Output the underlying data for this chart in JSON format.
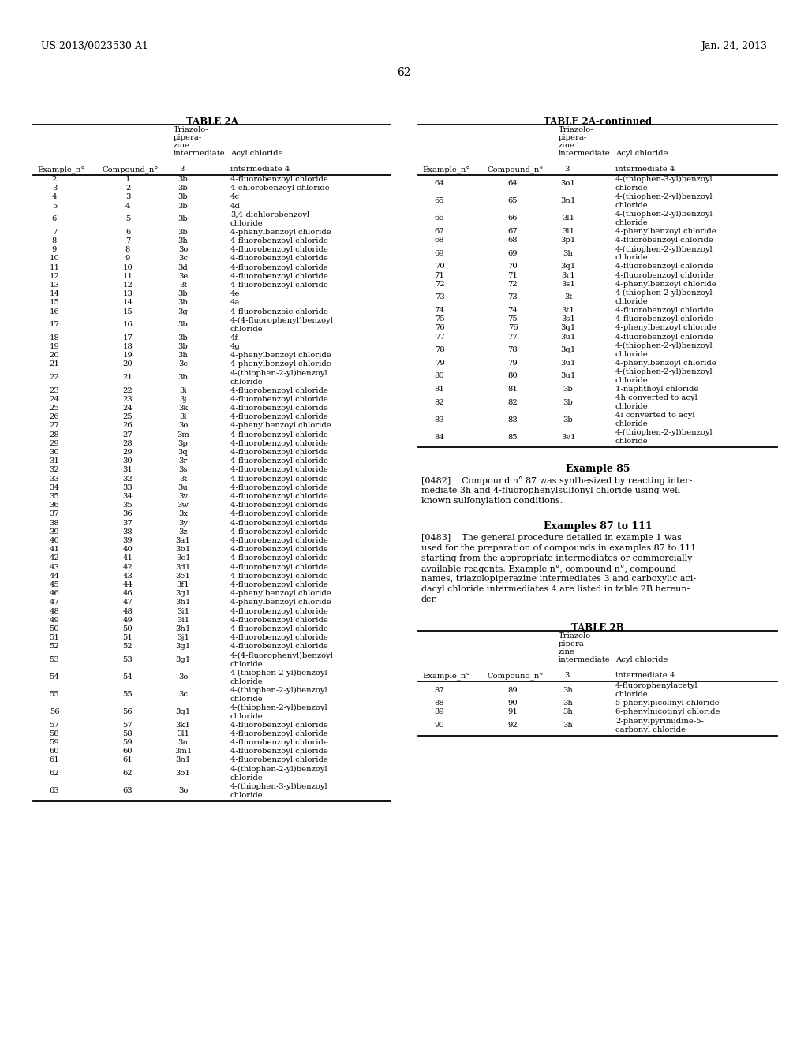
{
  "header_left": "US 2013/0023530 A1",
  "header_right": "Jan. 24, 2013",
  "page_number": "62",
  "table2a_title": "TABLE 2A",
  "table2a_continued_title": "TABLE 2A-continued",
  "table2b_title": "TABLE 2B",
  "table2a_rows": [
    [
      "2",
      "1",
      "3b",
      "4-fluorobenzoyl chloride"
    ],
    [
      "3",
      "2",
      "3b",
      "4-chlorobenzoyl chloride"
    ],
    [
      "4",
      "3",
      "3b",
      "4c"
    ],
    [
      "5",
      "4",
      "3b",
      "4d"
    ],
    [
      "6",
      "5",
      "3b",
      "3,4-dichlorobenzoyl\nchloride"
    ],
    [
      "7",
      "6",
      "3b",
      "4-phenylbenzoyl chloride"
    ],
    [
      "8",
      "7",
      "3h",
      "4-fluorobenzoyl chloride"
    ],
    [
      "9",
      "8",
      "3o",
      "4-fluorobenzoyl chloride"
    ],
    [
      "10",
      "9",
      "3c",
      "4-fluorobenzoyl chloride"
    ],
    [
      "11",
      "10",
      "3d",
      "4-fluorobenzoyl chloride"
    ],
    [
      "12",
      "11",
      "3e",
      "4-fluorobenzoyl chloride"
    ],
    [
      "13",
      "12",
      "3f",
      "4-fluorobenzoyl chloride"
    ],
    [
      "14",
      "13",
      "3b",
      "4e"
    ],
    [
      "15",
      "14",
      "3b",
      "4a"
    ],
    [
      "16",
      "15",
      "3g",
      "4-fluorobenzoic chloride"
    ],
    [
      "17",
      "16",
      "3b",
      "4-(4-fluorophenyl)benzoyl\nchloride"
    ],
    [
      "18",
      "17",
      "3b",
      "4f"
    ],
    [
      "19",
      "18",
      "3b",
      "4g"
    ],
    [
      "20",
      "19",
      "3h",
      "4-phenylbenzoyl chloride"
    ],
    [
      "21",
      "20",
      "3c",
      "4-phenylbenzoyl chloride"
    ],
    [
      "22",
      "21",
      "3b",
      "4-(thiophen-2-yl)benzoyl\nchloride"
    ],
    [
      "23",
      "22",
      "3i",
      "4-fluorobenzoyl chloride"
    ],
    [
      "24",
      "23",
      "3j",
      "4-fluorobenzoyl chloride"
    ],
    [
      "25",
      "24",
      "3k",
      "4-fluorobenzoyl chloride"
    ],
    [
      "26",
      "25",
      "3l",
      "4-fluorobenzoyl chloride"
    ],
    [
      "27",
      "26",
      "3o",
      "4-phenylbenzoyl chloride"
    ],
    [
      "28",
      "27",
      "3m",
      "4-fluorobenzoyl chloride"
    ],
    [
      "29",
      "28",
      "3p",
      "4-fluorobenzoyl chloride"
    ],
    [
      "30",
      "29",
      "3q",
      "4-fluorobenzoyl chloride"
    ],
    [
      "31",
      "30",
      "3r",
      "4-fluorobenzoyl chloride"
    ],
    [
      "32",
      "31",
      "3s",
      "4-fluorobenzoyl chloride"
    ],
    [
      "33",
      "32",
      "3t",
      "4-fluorobenzoyl chloride"
    ],
    [
      "34",
      "33",
      "3u",
      "4-fluorobenzoyl chloride"
    ],
    [
      "35",
      "34",
      "3v",
      "4-fluorobenzoyl chloride"
    ],
    [
      "36",
      "35",
      "3w",
      "4-fluorobenzoyl chloride"
    ],
    [
      "37",
      "36",
      "3x",
      "4-fluorobenzoyl chloride"
    ],
    [
      "38",
      "37",
      "3y",
      "4-fluorobenzoyl chloride"
    ],
    [
      "39",
      "38",
      "3z",
      "4-fluorobenzoyl chloride"
    ],
    [
      "40",
      "39",
      "3a1",
      "4-fluorobenzoyl chloride"
    ],
    [
      "41",
      "40",
      "3b1",
      "4-fluorobenzoyl chloride"
    ],
    [
      "42",
      "41",
      "3c1",
      "4-fluorobenzoyl chloride"
    ],
    [
      "43",
      "42",
      "3d1",
      "4-fluorobenzoyl chloride"
    ],
    [
      "44",
      "43",
      "3e1",
      "4-fluorobenzoyl chloride"
    ],
    [
      "45",
      "44",
      "3f1",
      "4-fluorobenzoyl chloride"
    ],
    [
      "46",
      "46",
      "3g1",
      "4-phenylbenzoyl chloride"
    ],
    [
      "47",
      "47",
      "3h1",
      "4-phenylbenzoyl chloride"
    ],
    [
      "48",
      "48",
      "3i1",
      "4-fluorobenzoyl chloride"
    ],
    [
      "49",
      "49",
      "3i1",
      "4-fluorobenzoyl chloride"
    ],
    [
      "50",
      "50",
      "3h1",
      "4-fluorobenzoyl chloride"
    ],
    [
      "51",
      "51",
      "3j1",
      "4-fluorobenzoyl chloride"
    ],
    [
      "52",
      "52",
      "3g1",
      "4-fluorobenzoyl chloride"
    ],
    [
      "53",
      "53",
      "3g1",
      "4-(4-fluorophenyl)benzoyl\nchloride"
    ],
    [
      "54",
      "54",
      "3o",
      "4-(thiophen-2-yl)benzoyl\nchloride"
    ],
    [
      "55",
      "55",
      "3c",
      "4-(thiophen-2-yl)benzoyl\nchloride"
    ],
    [
      "56",
      "56",
      "3g1",
      "4-(thiophen-2-yl)benzoyl\nchloride"
    ],
    [
      "57",
      "57",
      "3k1",
      "4-fluorobenzoyl chloride"
    ],
    [
      "58",
      "58",
      "3l1",
      "4-fluorobenzoyl chloride"
    ],
    [
      "59",
      "59",
      "3n",
      "4-fluorobenzoyl chloride"
    ],
    [
      "60",
      "60",
      "3m1",
      "4-fluorobenzoyl chloride"
    ],
    [
      "61",
      "61",
      "3n1",
      "4-fluorobenzoyl chloride"
    ],
    [
      "62",
      "62",
      "3o1",
      "4-(thiophen-2-yl)benzoyl\nchloride"
    ],
    [
      "63",
      "63",
      "3o",
      "4-(thiophen-3-yl)benzoyl\nchloride"
    ]
  ],
  "table2a_cont_rows": [
    [
      "64",
      "64",
      "3o1",
      "4-(thiophen-3-yl)benzoyl\nchloride"
    ],
    [
      "65",
      "65",
      "3n1",
      "4-(thiophen-2-yl)benzoyl\nchloride"
    ],
    [
      "66",
      "66",
      "3l1",
      "4-(thiophen-2-yl)benzoyl\nchloride"
    ],
    [
      "67",
      "67",
      "3l1",
      "4-phenylbenzoyl chloride"
    ],
    [
      "68",
      "68",
      "3p1",
      "4-fluorobenzoyl chloride"
    ],
    [
      "69",
      "69",
      "3h",
      "4-(thiophen-2-yl)benzoyl\nchloride"
    ],
    [
      "70",
      "70",
      "3q1",
      "4-fluorobenzoyl chloride"
    ],
    [
      "71",
      "71",
      "3r1",
      "4-fluorobenzoyl chloride"
    ],
    [
      "72",
      "72",
      "3s1",
      "4-phenylbenzoyl chloride"
    ],
    [
      "73",
      "73",
      "3t",
      "4-(thiophen-2-yl)benzoyl\nchloride"
    ],
    [
      "74",
      "74",
      "3t1",
      "4-fluorobenzoyl chloride"
    ],
    [
      "75",
      "75",
      "3s1",
      "4-fluorobenzoyl chloride"
    ],
    [
      "76",
      "76",
      "3q1",
      "4-phenylbenzoyl chloride"
    ],
    [
      "77",
      "77",
      "3u1",
      "4-fluorobenzoyl chloride"
    ],
    [
      "78",
      "78",
      "3q1",
      "4-(thiophen-2-yl)benzoyl\nchloride"
    ],
    [
      "79",
      "79",
      "3u1",
      "4-phenylbenzoyl chloride"
    ],
    [
      "80",
      "80",
      "3u1",
      "4-(thiophen-2-yl)benzoyl\nchloride"
    ],
    [
      "81",
      "81",
      "3b",
      "1-naphthoyl chloride"
    ],
    [
      "82",
      "82",
      "3b",
      "4h converted to acyl\nchloride"
    ],
    [
      "83",
      "83",
      "3b",
      "4i converted to acyl\nchloride"
    ],
    [
      "84",
      "85",
      "3v1",
      "4-(thiophen-2-yl)benzoyl\nchloride"
    ]
  ],
  "example85_title": "Example 85",
  "examples87_title": "Examples 87 to 111",
  "table2b_rows": [
    [
      "87",
      "89",
      "3h",
      "4-fluorophenylacetyl\nchloride"
    ],
    [
      "88",
      "90",
      "3h",
      "5-phenylpicolinyl chloride"
    ],
    [
      "89",
      "91",
      "3h",
      "6-phenylnicotinyl chloride"
    ],
    [
      "90",
      "92",
      "3h",
      "2-phenylpyrimidine-5-\ncarbonyl chloride"
    ]
  ],
  "bg_color": "#ffffff",
  "text_color": "#000000"
}
